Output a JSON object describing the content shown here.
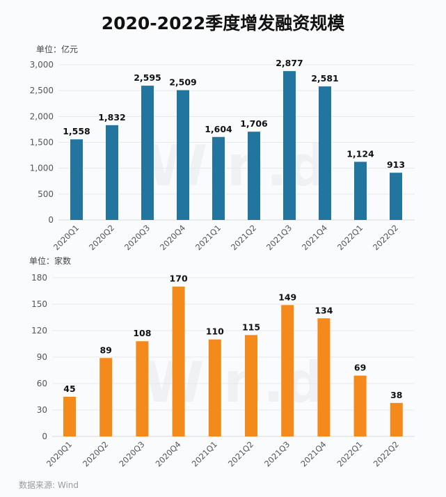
{
  "title": "2020-2022季度增发融资规模",
  "source": "数据来源: Wind",
  "chart_data": [
    {
      "type": "bar",
      "unit_label": "单位：亿元",
      "categories": [
        "2020Q1",
        "2020Q2",
        "2020Q3",
        "2020Q4",
        "2021Q1",
        "2021Q2",
        "2021Q3",
        "2021Q4",
        "2022Q1",
        "2022Q2"
      ],
      "values": [
        1558,
        1832,
        2595,
        2509,
        1604,
        1706,
        2877,
        2581,
        1124,
        913
      ],
      "value_labels": [
        "1,558",
        "1,832",
        "2,595",
        "2,509",
        "1,604",
        "1,706",
        "2,877",
        "2,581",
        "1,124",
        "913"
      ],
      "yticks": [
        0,
        500,
        1000,
        1500,
        2000,
        2500,
        3000
      ],
      "ytick_labels": [
        "0",
        "500",
        "1,000",
        "1,500",
        "2,000",
        "2,500",
        "3,000"
      ],
      "ylim": [
        0,
        3000
      ],
      "grid": true,
      "color": "#21759f"
    },
    {
      "type": "bar",
      "unit_label": "单位：家数",
      "categories": [
        "2020Q1",
        "2020Q2",
        "2020Q3",
        "2020Q4",
        "2021Q1",
        "2021Q2",
        "2021Q3",
        "2021Q4",
        "2022Q1",
        "2022Q2"
      ],
      "values": [
        45,
        89,
        108,
        170,
        110,
        115,
        149,
        134,
        69,
        38
      ],
      "value_labels": [
        "45",
        "89",
        "108",
        "170",
        "110",
        "115",
        "149",
        "134",
        "69",
        "38"
      ],
      "yticks": [
        0,
        30,
        60,
        90,
        120,
        150,
        180
      ],
      "ytick_labels": [
        "0",
        "30",
        "60",
        "90",
        "120",
        "150",
        "180"
      ],
      "ylim": [
        0,
        180
      ],
      "grid": true,
      "color": "#f58a1c"
    }
  ]
}
